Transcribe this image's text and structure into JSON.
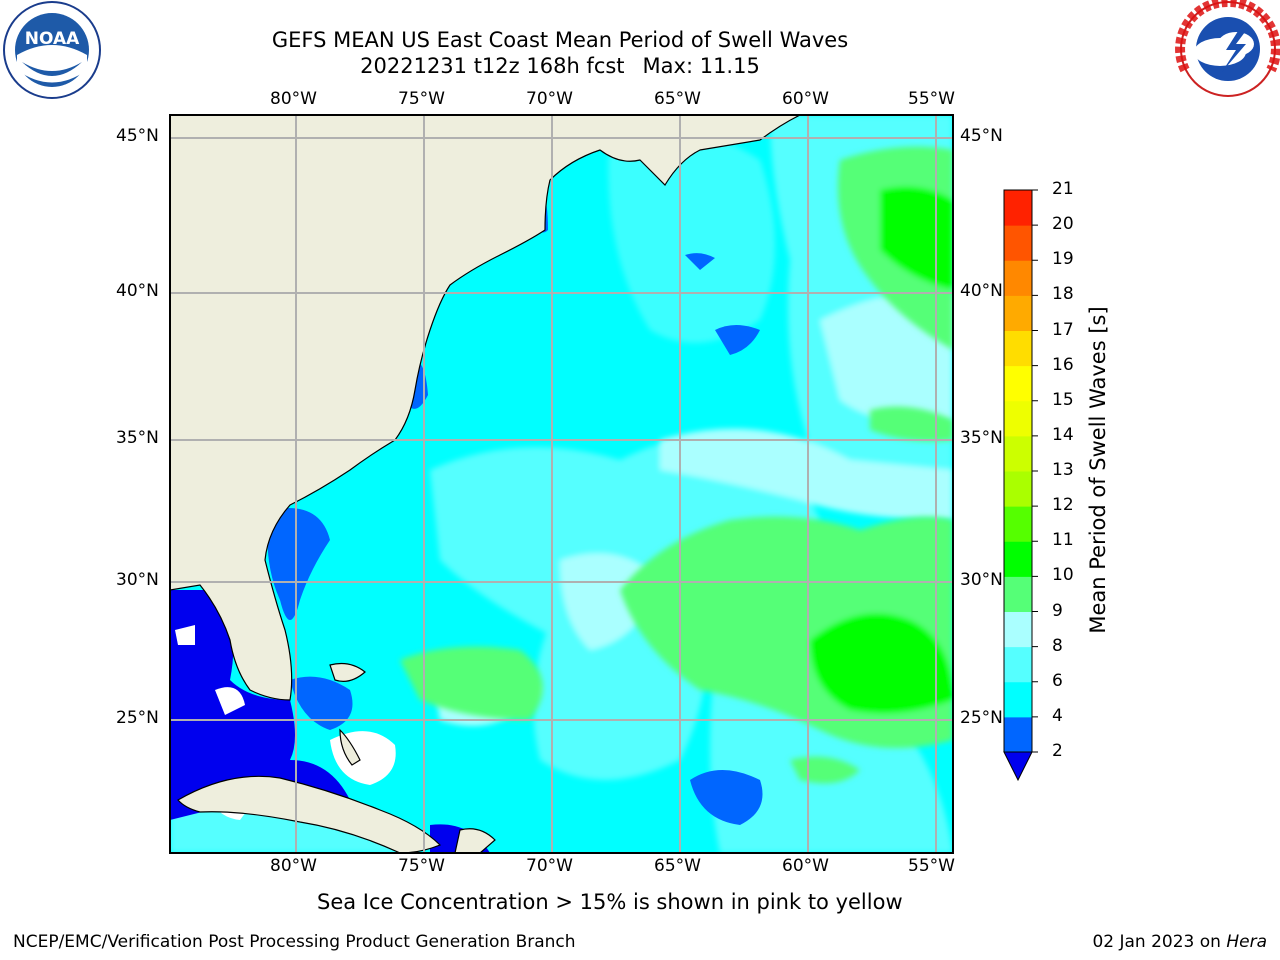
{
  "title": {
    "line1": "GEFS MEAN US East Coast Mean Period of Swell Waves",
    "line2_run": "20221231 t12z 168h fcst",
    "line2_max": "Max: 11.15"
  },
  "logos": {
    "left": "noara-logo",
    "right": "national-weather-service-logo",
    "left_text": "NOAA"
  },
  "map": {
    "lon_ticks": [
      "80°W",
      "75°W",
      "70°W",
      "65°W",
      "60°W",
      "55°W"
    ],
    "lat_ticks": [
      "45°N",
      "40°N",
      "35°N",
      "30°N",
      "25°N"
    ],
    "colors": {
      "land": "#eeeedd",
      "ocean_base": "#00ffff",
      "coast": "#000000",
      "grid": "#b0b0b0"
    }
  },
  "colorbar": {
    "label": "Mean Period of Swell Waves [s]",
    "ticks": [
      "2",
      "4",
      "6",
      "8",
      "9",
      "10",
      "11",
      "12",
      "13",
      "14",
      "15",
      "16",
      "17",
      "18",
      "19",
      "20",
      "21"
    ],
    "colors": [
      "#0066ff",
      "#00ffff",
      "#55ffff",
      "#aaffff",
      "#55ff77",
      "#00ff00",
      "#55ff00",
      "#aaff00",
      "#ccff00",
      "#eeff00",
      "#ffff00",
      "#ffdd00",
      "#ffaa00",
      "#ff8800",
      "#ff5500",
      "#ff2200"
    ],
    "under_color": "#0000ee"
  },
  "footer": {
    "ice_note": "Sea Ice Concentration > 15% is shown in pink to yellow",
    "credit": "NCEP/EMC/Verification Post Processing Product Generation Branch",
    "date": "02 Jan 2023 on",
    "host": "Hera"
  }
}
